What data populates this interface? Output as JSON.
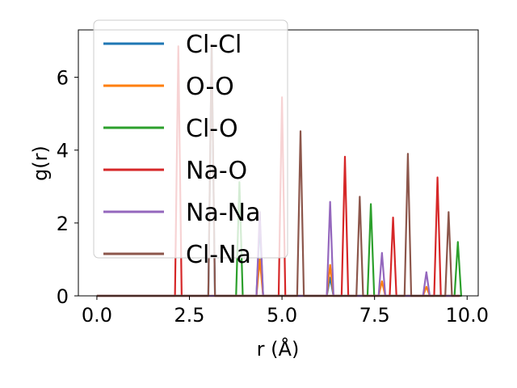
{
  "chart_data": {
    "type": "line",
    "xlabel": "r (Å)",
    "ylabel": "g(r)",
    "xlim": [
      -0.5,
      10.3
    ],
    "ylim": [
      0,
      7.3
    ],
    "xticks": [
      0.0,
      2.5,
      5.0,
      7.5,
      10.0
    ],
    "xtick_labels": [
      "0.0",
      "2.5",
      "5.0",
      "7.5",
      "10.0"
    ],
    "yticks": [
      0,
      2,
      4,
      6
    ],
    "ytick_labels": [
      "0",
      "2",
      "4",
      "6"
    ],
    "grid": false,
    "legend_position": "top-left",
    "x_start": 0.0,
    "x_end": 9.8,
    "series": [
      {
        "name": "Cl-Cl",
        "color": "#1f77b4",
        "peaks": [
          [
            3.1,
            6.85
          ],
          [
            4.4,
            2.0
          ],
          [
            6.3,
            0.5
          ]
        ]
      },
      {
        "name": "O-O",
        "color": "#ff7f0e",
        "peaks": [
          [
            4.4,
            1.0
          ],
          [
            6.3,
            0.85
          ],
          [
            7.7,
            0.4
          ],
          [
            8.9,
            0.25
          ]
        ]
      },
      {
        "name": "Cl-O",
        "color": "#2ca02c",
        "peaks": [
          [
            3.85,
            3.12
          ],
          [
            7.4,
            2.52
          ],
          [
            9.75,
            1.48
          ]
        ]
      },
      {
        "name": "Na-O",
        "color": "#d62728",
        "peaks": [
          [
            2.2,
            6.85
          ],
          [
            5.0,
            5.45
          ],
          [
            6.7,
            3.82
          ],
          [
            8.0,
            2.15
          ],
          [
            9.2,
            3.25
          ]
        ]
      },
      {
        "name": "Na-Na",
        "color": "#9467bd",
        "peaks": [
          [
            4.4,
            2.3
          ],
          [
            6.3,
            2.58
          ],
          [
            7.7,
            1.18
          ],
          [
            8.9,
            0.65
          ]
        ]
      },
      {
        "name": "Cl-Na",
        "color": "#8c564b",
        "peaks": [
          [
            3.1,
            6.9
          ],
          [
            5.5,
            4.52
          ],
          [
            7.1,
            2.72
          ],
          [
            8.4,
            3.9
          ],
          [
            9.5,
            2.3
          ]
        ]
      }
    ]
  }
}
